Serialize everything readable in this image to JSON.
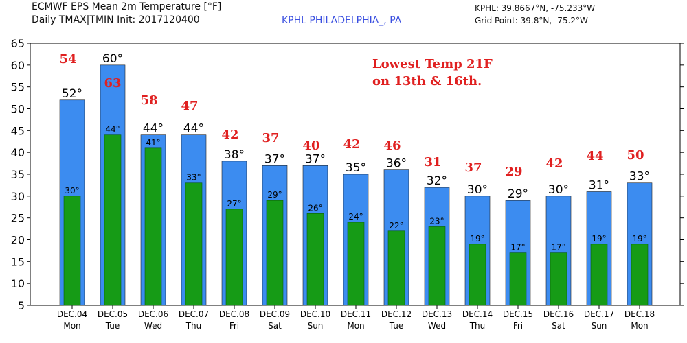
{
  "header": {
    "title_line1": "ECMWF EPS Mean 2m Temperature [°F]",
    "title_line2": "Daily TMAX|TMIN Init: 2017120400",
    "station": "KPHL PHILADELPHIA_, PA",
    "station_coords": "KPHL: 39.8667°N, -75.233°W",
    "grid_point": "Grid Point: 39.8°N, -75.2°W"
  },
  "chart_data": {
    "type": "bar",
    "categories": [
      "DEC.04",
      "DEC.05",
      "DEC.06",
      "DEC.07",
      "DEC.08",
      "DEC.09",
      "DEC.10",
      "DEC.11",
      "DEC.12",
      "DEC.13",
      "DEC.14",
      "DEC.15",
      "DEC.16",
      "DEC.17",
      "DEC.18"
    ],
    "days": [
      "Mon",
      "Tue",
      "Wed",
      "Thu",
      "Fri",
      "Sat",
      "Sun",
      "Mon",
      "Tue",
      "Wed",
      "Thu",
      "Fri",
      "Sat",
      "Sun",
      "Mon"
    ],
    "series": [
      {
        "values": [
          52,
          60,
          44,
          44,
          38,
          37,
          37,
          35,
          36,
          32,
          30,
          29,
          30,
          31,
          33
        ],
        "labels": [
          "52°",
          "60°",
          "44°",
          "44°",
          "38°",
          "37°",
          "37°",
          "35°",
          "36°",
          "32°",
          "30°",
          "29°",
          "30°",
          "31°",
          "33°"
        ],
        "color": "#3c8cf0"
      },
      {
        "values": [
          30,
          44,
          41,
          33,
          27,
          29,
          26,
          24,
          22,
          23,
          19,
          17,
          17,
          19,
          19
        ],
        "labels": [
          "30°",
          "44°",
          "41°",
          "33°",
          "27°",
          "29°",
          "26°",
          "24°",
          "22°",
          "23°",
          "19°",
          "17°",
          "17°",
          "19°",
          "19°"
        ],
        "color": "#169b16"
      }
    ],
    "annotation_values": [
      "54",
      "63",
      "58",
      "47",
      "42",
      "37",
      "40",
      "42",
      "46",
      "31",
      "37",
      "29",
      "42",
      "44",
      "50"
    ],
    "annotation_color": "#e02020",
    "annotation_text": [
      "Lowest Temp 21F",
      "on 13th & 16th."
    ],
    "ylim": [
      5,
      65
    ],
    "yticks": [
      "5",
      "10",
      "15",
      "20",
      "25",
      "30",
      "35",
      "40",
      "45",
      "50",
      "55",
      "60",
      "65"
    ],
    "grid": false
  }
}
